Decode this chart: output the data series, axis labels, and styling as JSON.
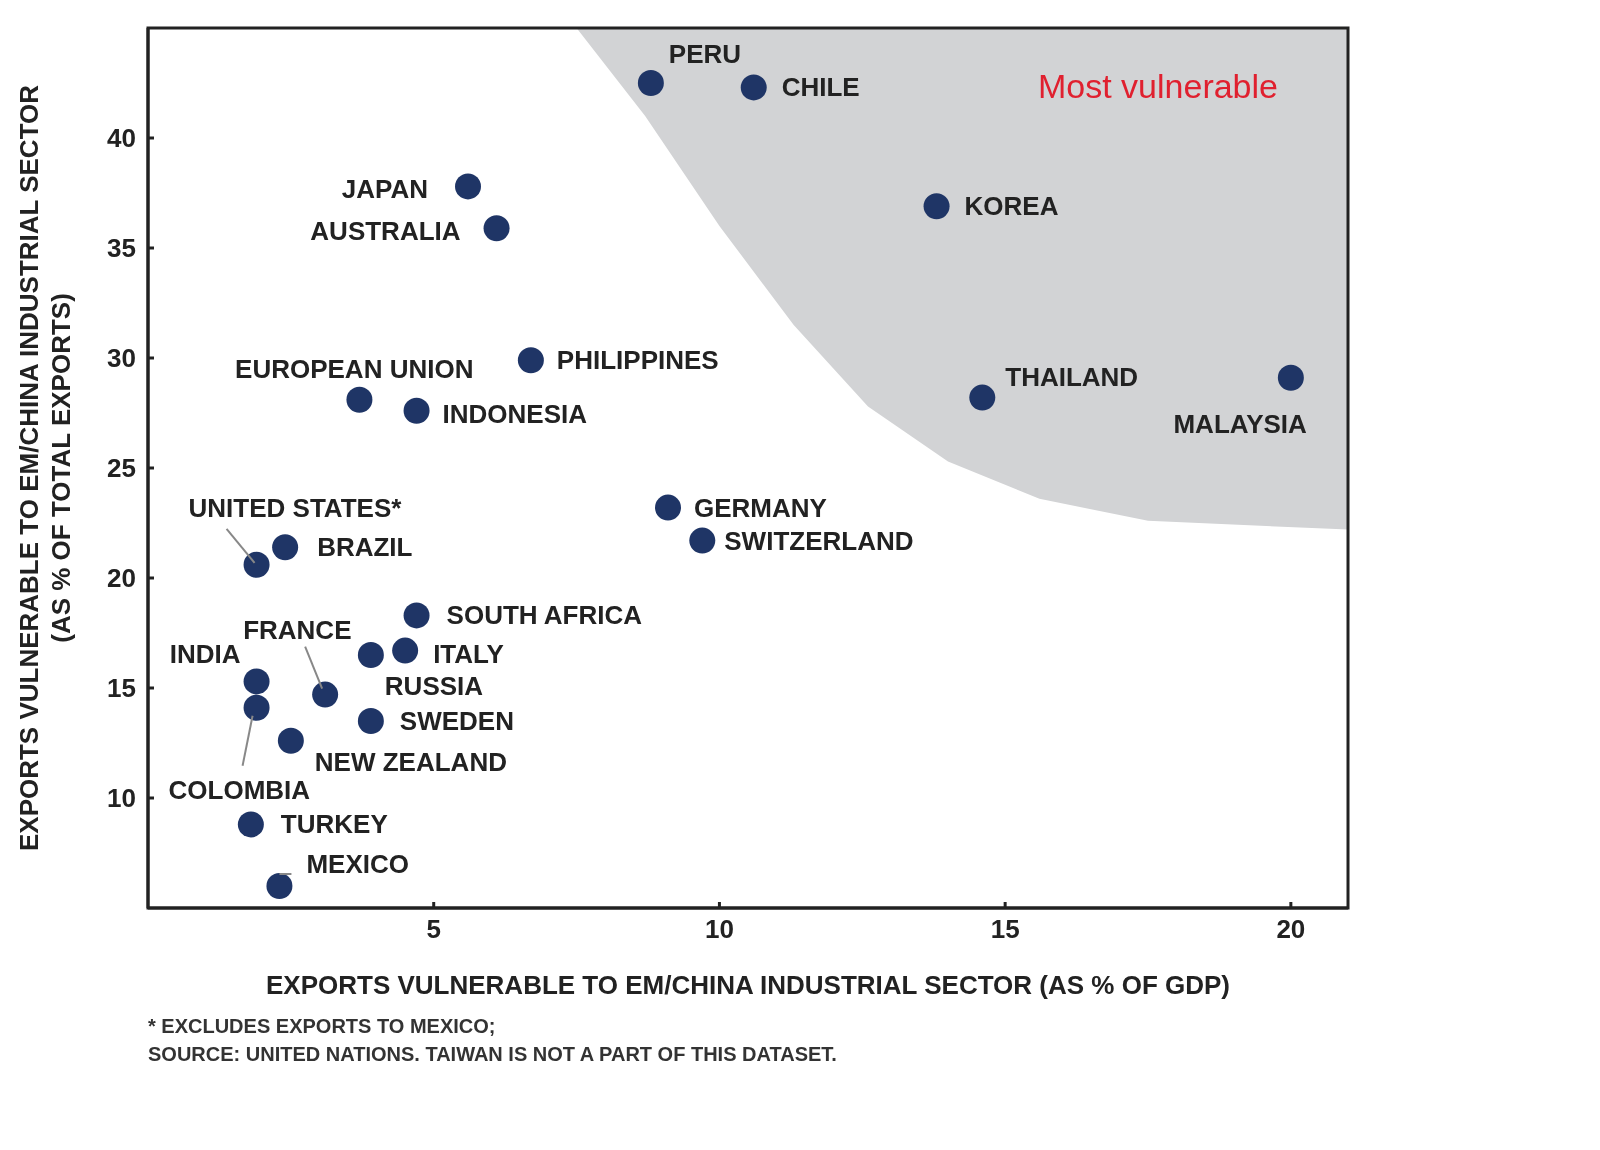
{
  "chart_data": {
    "type": "scatter",
    "xlabel": "EXPORTS VULNERABLE TO EM/CHINA INDUSTRIAL SECTOR (AS % OF GDP)",
    "ylabel": "EXPORTS VULNERABLE TO EM/CHINA INDUSTRIAL SECTOR\n(AS % OF TOTAL EXPORTS)",
    "xlim": [
      0,
      21
    ],
    "xticks": [
      5,
      10,
      15,
      20
    ],
    "ylim": [
      5,
      45
    ],
    "yticks": [
      10,
      15,
      20,
      25,
      30,
      35,
      40
    ],
    "grid": false,
    "legend": false,
    "marker": "circle",
    "annotations": [
      "Most vulnerable",
      "* EXCLUDES EXPORTS TO MEXICO;",
      "SOURCE: UNITED NATIONS. TAIWAN IS NOT A PART OF THIS DATASET."
    ],
    "series": [
      {
        "name": "PERU",
        "color": "#1f3566",
        "x": [
          8.8
        ],
        "values": [
          42.5
        ]
      },
      {
        "name": "CHILE",
        "color": "#1f3566",
        "x": [
          10.6
        ],
        "values": [
          42.3
        ]
      },
      {
        "name": "KOREA",
        "color": "#1f3566",
        "x": [
          13.8
        ],
        "values": [
          36.9
        ]
      },
      {
        "name": "JAPAN",
        "color": "#1f3566",
        "x": [
          5.6
        ],
        "values": [
          37.8
        ]
      },
      {
        "name": "AUSTRALIA",
        "color": "#1f3566",
        "x": [
          6.1
        ],
        "values": [
          35.9
        ]
      },
      {
        "name": "PHILIPPINES",
        "color": "#1f3566",
        "x": [
          6.7
        ],
        "values": [
          29.9
        ]
      },
      {
        "name": "EUROPEAN UNION",
        "color": "#1f3566",
        "x": [
          3.7
        ],
        "values": [
          28.1
        ]
      },
      {
        "name": "INDONESIA",
        "color": "#1f3566",
        "x": [
          4.7
        ],
        "values": [
          27.6
        ]
      },
      {
        "name": "THAILAND",
        "color": "#1f3566",
        "x": [
          14.6
        ],
        "values": [
          28.2
        ]
      },
      {
        "name": "MALAYSIA",
        "color": "#1f3566",
        "x": [
          20.0
        ],
        "values": [
          29.1
        ]
      },
      {
        "name": "GERMANY",
        "color": "#1f3566",
        "x": [
          9.1
        ],
        "values": [
          23.2
        ]
      },
      {
        "name": "SWITZERLAND",
        "color": "#1f3566",
        "x": [
          9.7
        ],
        "values": [
          21.7
        ]
      },
      {
        "name": "UNITED STATES*",
        "color": "#1f3566",
        "x": [
          1.9
        ],
        "values": [
          20.6
        ]
      },
      {
        "name": "BRAZIL",
        "color": "#1f3566",
        "x": [
          2.4
        ],
        "values": [
          21.4
        ]
      },
      {
        "name": "SOUTH AFRICA",
        "color": "#1f3566",
        "x": [
          4.7
        ],
        "values": [
          18.3
        ]
      },
      {
        "name": "ITALY",
        "color": "#1f3566",
        "x": [
          4.5
        ],
        "values": [
          16.7
        ]
      },
      {
        "name": "RUSSIA",
        "color": "#1f3566",
        "x": [
          3.9
        ],
        "values": [
          16.5
        ]
      },
      {
        "name": "FRANCE",
        "color": "#1f3566",
        "x": [
          3.1
        ],
        "values": [
          14.7
        ]
      },
      {
        "name": "INDIA",
        "color": "#1f3566",
        "x": [
          1.9
        ],
        "values": [
          15.3
        ]
      },
      {
        "name": "COLOMBIA",
        "color": "#1f3566",
        "x": [
          1.9
        ],
        "values": [
          14.1
        ]
      },
      {
        "name": "SWEDEN",
        "color": "#1f3566",
        "x": [
          3.9
        ],
        "values": [
          13.5
        ]
      },
      {
        "name": "NEW ZEALAND",
        "color": "#1f3566",
        "x": [
          2.5
        ],
        "values": [
          12.6
        ]
      },
      {
        "name": "TURKEY",
        "color": "#1f3566",
        "x": [
          1.8
        ],
        "values": [
          8.8
        ]
      },
      {
        "name": "MEXICO",
        "color": "#1f3566",
        "x": [
          2.3
        ],
        "values": [
          6.0
        ]
      }
    ]
  }
}
